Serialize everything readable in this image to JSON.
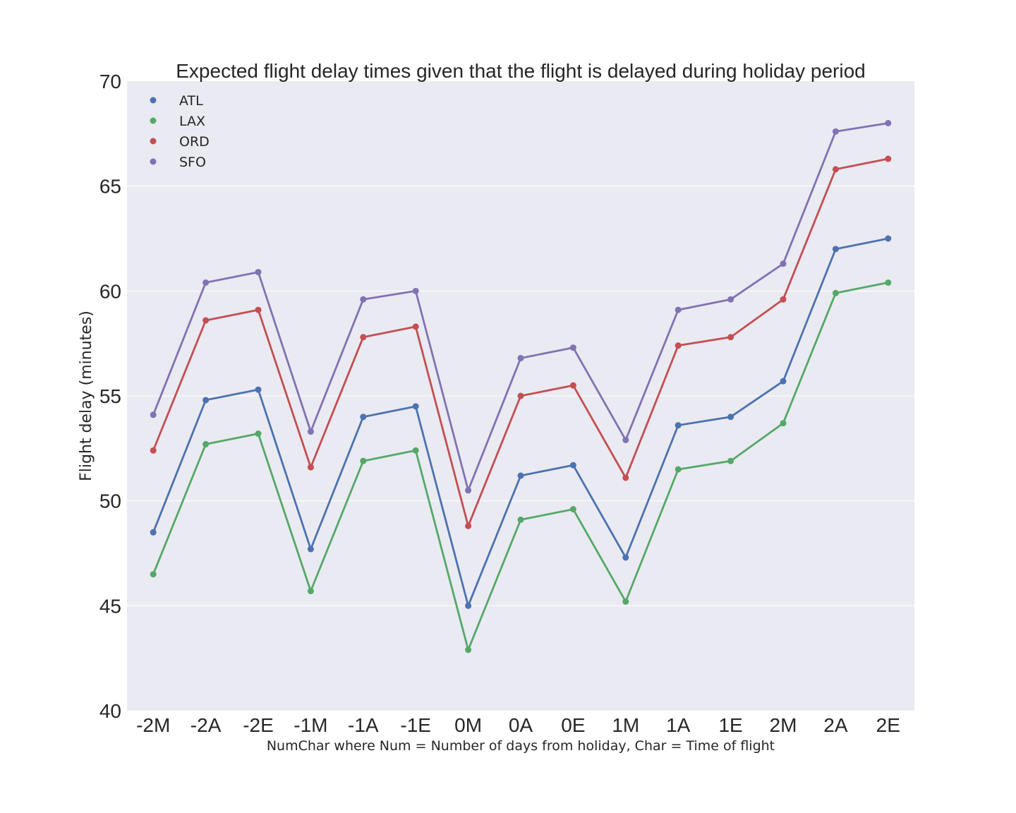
{
  "chart_data": {
    "type": "line",
    "title": "Expected flight delay times given that the flight is delayed during holiday period",
    "xlabel": "NumChar where Num = Number of days from holiday, Char = Time of flight",
    "ylabel": "Flight delay (minutes)",
    "categories": [
      "-2M",
      "-2A",
      "-2E",
      "-1M",
      "-1A",
      "-1E",
      "0M",
      "0A",
      "0E",
      "1M",
      "1A",
      "1E",
      "2M",
      "2A",
      "2E"
    ],
    "ylim": [
      40,
      70
    ],
    "yticks": [
      "40",
      "45",
      "50",
      "55",
      "60",
      "65",
      "70"
    ],
    "grid": true,
    "legend_position": "top-left",
    "background_color": "#eaeaf2",
    "series": [
      {
        "name": "ATL",
        "color": "#4c72b0",
        "values": [
          48.5,
          54.8,
          55.3,
          47.7,
          54.0,
          54.5,
          45.0,
          51.2,
          51.7,
          47.3,
          53.6,
          54.0,
          55.7,
          62.0,
          62.5
        ]
      },
      {
        "name": "LAX",
        "color": "#55a868",
        "values": [
          46.5,
          52.7,
          53.2,
          45.7,
          51.9,
          52.4,
          42.9,
          49.1,
          49.6,
          45.2,
          51.5,
          51.9,
          53.7,
          59.9,
          60.4
        ]
      },
      {
        "name": "ORD",
        "color": "#c44e52",
        "values": [
          52.4,
          58.6,
          59.1,
          51.6,
          57.8,
          58.3,
          48.8,
          55.0,
          55.5,
          51.1,
          57.4,
          57.8,
          59.6,
          65.8,
          66.3
        ]
      },
      {
        "name": "SFO",
        "color": "#8172b2",
        "values": [
          54.1,
          60.4,
          60.9,
          53.3,
          59.6,
          60.0,
          50.5,
          56.8,
          57.3,
          52.9,
          59.1,
          59.6,
          61.3,
          67.6,
          68.0
        ]
      }
    ]
  }
}
